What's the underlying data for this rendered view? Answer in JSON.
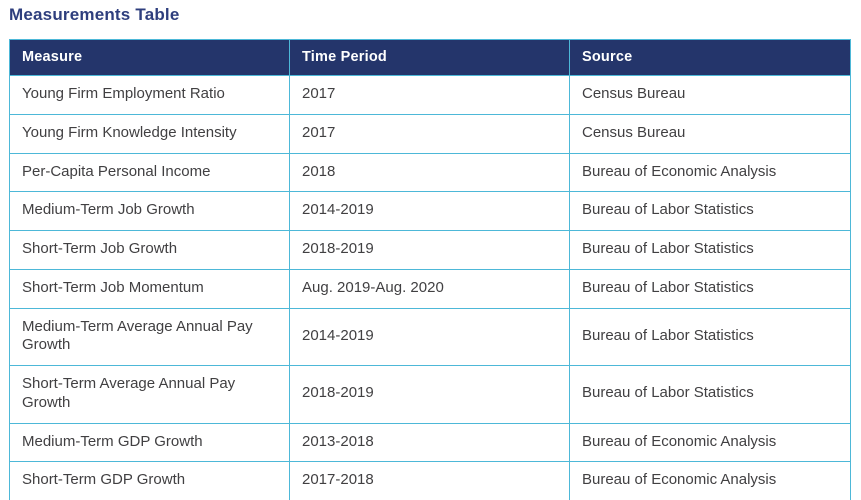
{
  "page": {
    "title": "Measurements Table"
  },
  "table": {
    "columns": [
      {
        "key": "measure",
        "label": "Measure"
      },
      {
        "key": "period",
        "label": "Time Period"
      },
      {
        "key": "source",
        "label": "Source"
      }
    ],
    "rows": [
      {
        "measure": "Young Firm Employment Ratio",
        "period": "2017",
        "source": "Census Bureau"
      },
      {
        "measure": "Young Firm Knowledge Intensity",
        "period": "2017",
        "source": "Census Bureau"
      },
      {
        "measure": "Per-Capita Personal Income",
        "period": "2018",
        "source": "Bureau of Economic Analysis"
      },
      {
        "measure": "Medium-Term Job Growth",
        "period": "2014-2019",
        "source": "Bureau of Labor Statistics"
      },
      {
        "measure": "Short-Term Job Growth",
        "period": "2018-2019",
        "source": "Bureau of Labor Statistics"
      },
      {
        "measure": "Short-Term Job Momentum",
        "period": "Aug. 2019-Aug. 2020",
        "source": "Bureau of Labor Statistics"
      },
      {
        "measure": "Medium-Term Average Annual Pay Growth",
        "period": "2014-2019",
        "source": "Bureau of Labor Statistics"
      },
      {
        "measure": "Short-Term Average Annual Pay Growth",
        "period": "2018-2019",
        "source": "Bureau of Labor Statistics"
      },
      {
        "measure": "Medium-Term GDP Growth",
        "period": "2013-2018",
        "source": "Bureau of Economic Analysis"
      },
      {
        "measure": "Short-Term GDP Growth",
        "period": "2017-2018",
        "source": "Bureau of Economic Analysis"
      }
    ]
  },
  "colors": {
    "title_text": "#2e3e7d",
    "header_background": "#24356b",
    "header_text": "#ffffff",
    "cell_border": "#4db8d8",
    "body_text": "#414042",
    "row_background": "#ffffff"
  }
}
